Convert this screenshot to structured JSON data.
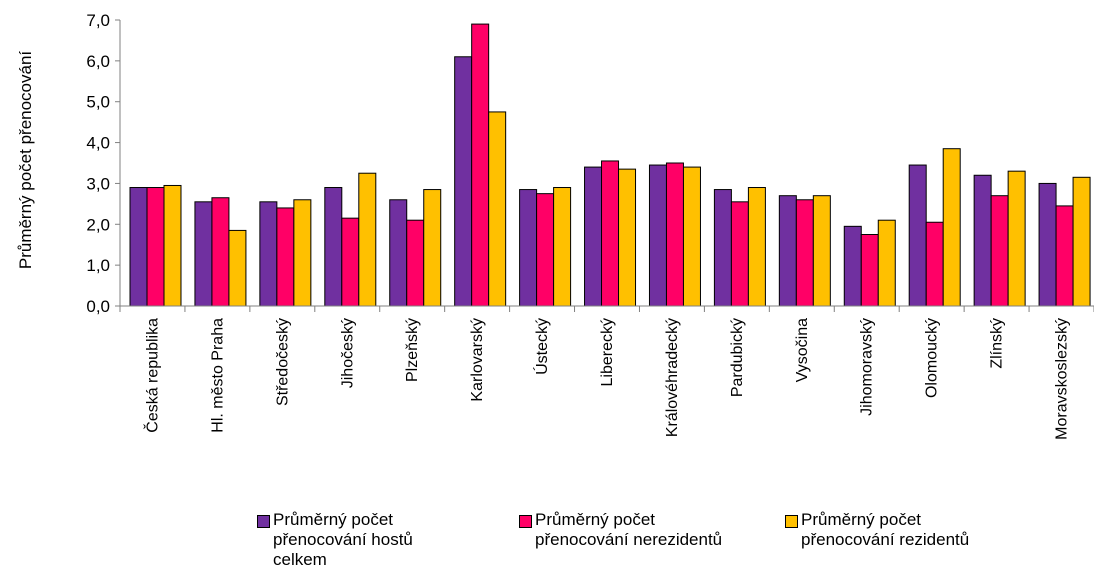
{
  "chart_data": {
    "type": "bar",
    "title": "",
    "xlabel": "",
    "ylabel": "Průměrný počet přenocování",
    "ylim": [
      0,
      7
    ],
    "yticks": [
      "0,0",
      "1,0",
      "2,0",
      "3,0",
      "4,0",
      "5,0",
      "6,0",
      "7,0"
    ],
    "grid": false,
    "legend_position": "bottom",
    "categories": [
      "Česká republika",
      "Hl. město Praha",
      "Středočeský",
      "Jihočeský",
      "Plzeňský",
      "Karlovarský",
      "Ústecký",
      "Liberecký",
      "Královéhradecký",
      "Pardubický",
      "Vysočina",
      "Jihomoravský",
      "Olomoucký",
      "Zlínský",
      "Moravskoslezský"
    ],
    "series": [
      {
        "name": "Průměrný počet přenocování hostů celkem",
        "color": "#7030a0",
        "values": [
          2.9,
          2.55,
          2.55,
          2.9,
          2.6,
          6.1,
          2.85,
          3.4,
          3.45,
          2.85,
          2.7,
          1.95,
          3.45,
          3.2,
          3.0
        ]
      },
      {
        "name": "Průměrný počet přenocování nerezidentů",
        "color": "#ff0066",
        "values": [
          2.9,
          2.65,
          2.4,
          2.15,
          2.1,
          6.9,
          2.75,
          3.55,
          3.5,
          2.55,
          2.6,
          1.75,
          2.05,
          2.7,
          2.45
        ]
      },
      {
        "name": "Průměrný počet přenocování rezidentů",
        "color": "#ffc000",
        "values": [
          2.95,
          1.85,
          2.6,
          3.25,
          2.85,
          4.75,
          2.9,
          3.35,
          3.4,
          2.9,
          2.7,
          2.1,
          3.85,
          3.3,
          3.15
        ]
      }
    ]
  }
}
